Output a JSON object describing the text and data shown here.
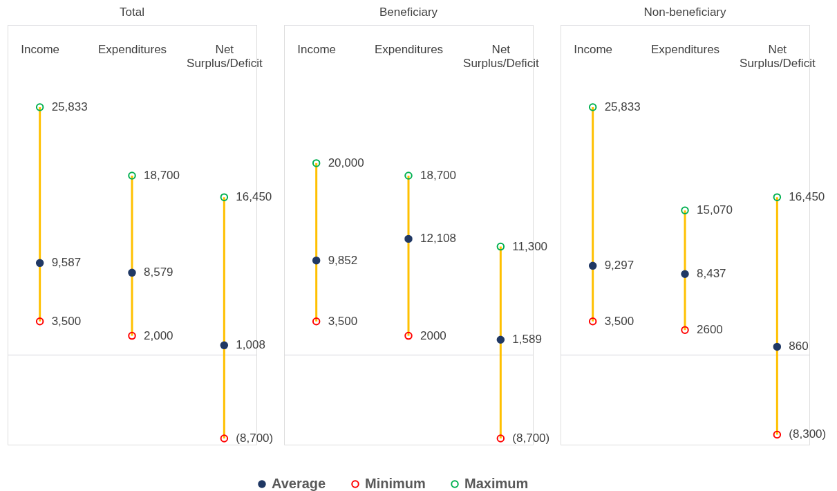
{
  "chart_data": [
    {
      "type": "scatter",
      "title": "Total",
      "categories": [
        "Income",
        "Expenditures",
        "Net Surplus/Deficit"
      ],
      "tick_labels": "x",
      "marker": "circle",
      "legend": "bottom",
      "ref_lines": [
        {
          "axis": "y",
          "value": 0,
          "color": "#d9d9de"
        }
      ],
      "series": [
        {
          "type": "line",
          "color": "#ffc000",
          "marker": "none",
          "x": [
            "Income",
            "Income"
          ],
          "values": [
            3500,
            25833
          ]
        },
        {
          "type": "line",
          "color": "#ffc000",
          "marker": "none",
          "x": [
            "Expenditures",
            "Expenditures"
          ],
          "values": [
            2000,
            18700
          ]
        },
        {
          "type": "line",
          "color": "#ffc000",
          "marker": "none",
          "x": [
            "Net Surplus/Deficit",
            "Net Surplus/Deficit"
          ],
          "values": [
            -8700,
            16450
          ]
        },
        {
          "name": "Average",
          "type": "scatter",
          "color": "#203864",
          "values": [
            9587,
            8579,
            1008
          ],
          "value_labels": [
            "9,587",
            "8,579",
            "1,008"
          ]
        },
        {
          "name": "Minimum",
          "type": "scatter",
          "color": "#ff0000",
          "values": [
            3500,
            2000,
            -8700
          ],
          "value_labels": [
            "3,500",
            "2,000",
            "(8,700)"
          ]
        },
        {
          "name": "Maximum",
          "type": "scatter",
          "color": "#00b050",
          "values": [
            25833,
            18700,
            16450
          ],
          "value_labels": [
            "25,833",
            "18,700",
            "16,450"
          ]
        }
      ]
    },
    {
      "type": "scatter",
      "title": "Beneficiary",
      "categories": [
        "Income",
        "Expenditures",
        "Net Surplus/Deficit"
      ],
      "tick_labels": "x",
      "marker": "circle",
      "ref_lines": [
        {
          "axis": "y",
          "value": 0,
          "color": "#d9d9de"
        }
      ],
      "series": [
        {
          "type": "line",
          "color": "#ffc000",
          "marker": "none",
          "x": [
            "Income",
            "Income"
          ],
          "values": [
            3500,
            20000
          ]
        },
        {
          "type": "line",
          "color": "#ffc000",
          "marker": "none",
          "x": [
            "Expenditures",
            "Expenditures"
          ],
          "values": [
            2000,
            18700
          ]
        },
        {
          "type": "line",
          "color": "#ffc000",
          "marker": "none",
          "x": [
            "Net Surplus/Deficit",
            "Net Surplus/Deficit"
          ],
          "values": [
            -8700,
            11300
          ]
        },
        {
          "type": "scatter",
          "color": "#203864",
          "values": [
            9852,
            12108,
            1589
          ],
          "value_labels": [
            "9,852",
            "12,108",
            "1,589"
          ]
        },
        {
          "type": "scatter",
          "color": "#ff0000",
          "values": [
            3500,
            2000,
            -8700
          ],
          "value_labels": [
            "3,500",
            "2000",
            "(8,700)"
          ]
        },
        {
          "type": "scatter",
          "color": "#00b050",
          "values": [
            20000,
            18700,
            11300
          ],
          "value_labels": [
            "20,000",
            "18,700",
            "11,300"
          ]
        }
      ]
    },
    {
      "type": "scatter",
      "title": "Non-beneficiary",
      "categories": [
        "Income",
        "Expenditures",
        "Net Surplus/Deficit"
      ],
      "tick_labels": "x",
      "marker": "circle",
      "ref_lines": [
        {
          "axis": "y",
          "value": 0,
          "color": "#d9d9de"
        }
      ],
      "series": [
        {
          "type": "line",
          "color": "#ffc000",
          "marker": "none",
          "x": [
            "Income",
            "Income"
          ],
          "values": [
            3500,
            25833
          ]
        },
        {
          "type": "line",
          "color": "#ffc000",
          "marker": "none",
          "x": [
            "Expenditures",
            "Expenditures"
          ],
          "values": [
            2600,
            15070
          ]
        },
        {
          "type": "line",
          "color": "#ffc000",
          "marker": "none",
          "x": [
            "Net Surplus/Deficit",
            "Net Surplus/Deficit"
          ],
          "values": [
            -8300,
            16450
          ]
        },
        {
          "type": "scatter",
          "color": "#203864",
          "values": [
            9297,
            8437,
            860
          ],
          "value_labels": [
            "9,297",
            "8,437",
            "860"
          ]
        },
        {
          "type": "scatter",
          "color": "#ff0000",
          "values": [
            3500,
            2600,
            -8300
          ],
          "value_labels": [
            "3,500",
            "2600",
            "(8,300)"
          ]
        },
        {
          "type": "scatter",
          "color": "#00b050",
          "values": [
            25833,
            15070,
            16450
          ],
          "value_labels": [
            "25,833",
            "15,070",
            "16,450"
          ]
        }
      ]
    }
  ]
}
